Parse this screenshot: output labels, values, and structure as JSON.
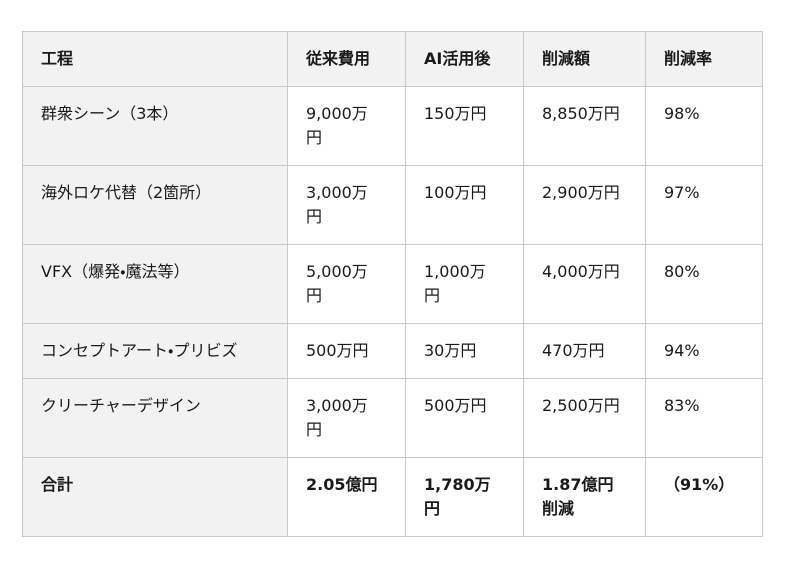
{
  "chart_data": {
    "type": "table",
    "columns": [
      "工程",
      "従来費用",
      "AI活用後",
      "削減額",
      "削減率"
    ],
    "rows": [
      [
        "群衆シーン（3本）",
        "9,000万\n円",
        "150万円",
        "8,850万円",
        "98%"
      ],
      [
        "海外ロケ代替（2箇所）",
        "3,000万\n円",
        "100万円",
        "2,900万円",
        "97%"
      ],
      [
        "VFX（爆発・魔法等）",
        "5,000万\n円",
        "1,000万\n円",
        "4,000万円",
        "80%"
      ],
      [
        "コンセプトアート・プリビズ",
        "500万円",
        "30万円",
        "470万円",
        "94%"
      ],
      [
        "クリーチャーデザイン",
        "3,000万\n円",
        "500万円",
        "2,500万円",
        "83%"
      ],
      [
        "合計",
        "2.05億円",
        "1,780万\n円",
        "1.87億円\n削減",
        "（91%）"
      ]
    ],
    "total_row_index": 5,
    "layout": {
      "header_background": "#f2f2f3",
      "row_label_background": "#f2f2f3",
      "cell_background": "#ffffff",
      "border_color": "#c9c9c9",
      "text_color": "#1a1a1a"
    }
  }
}
